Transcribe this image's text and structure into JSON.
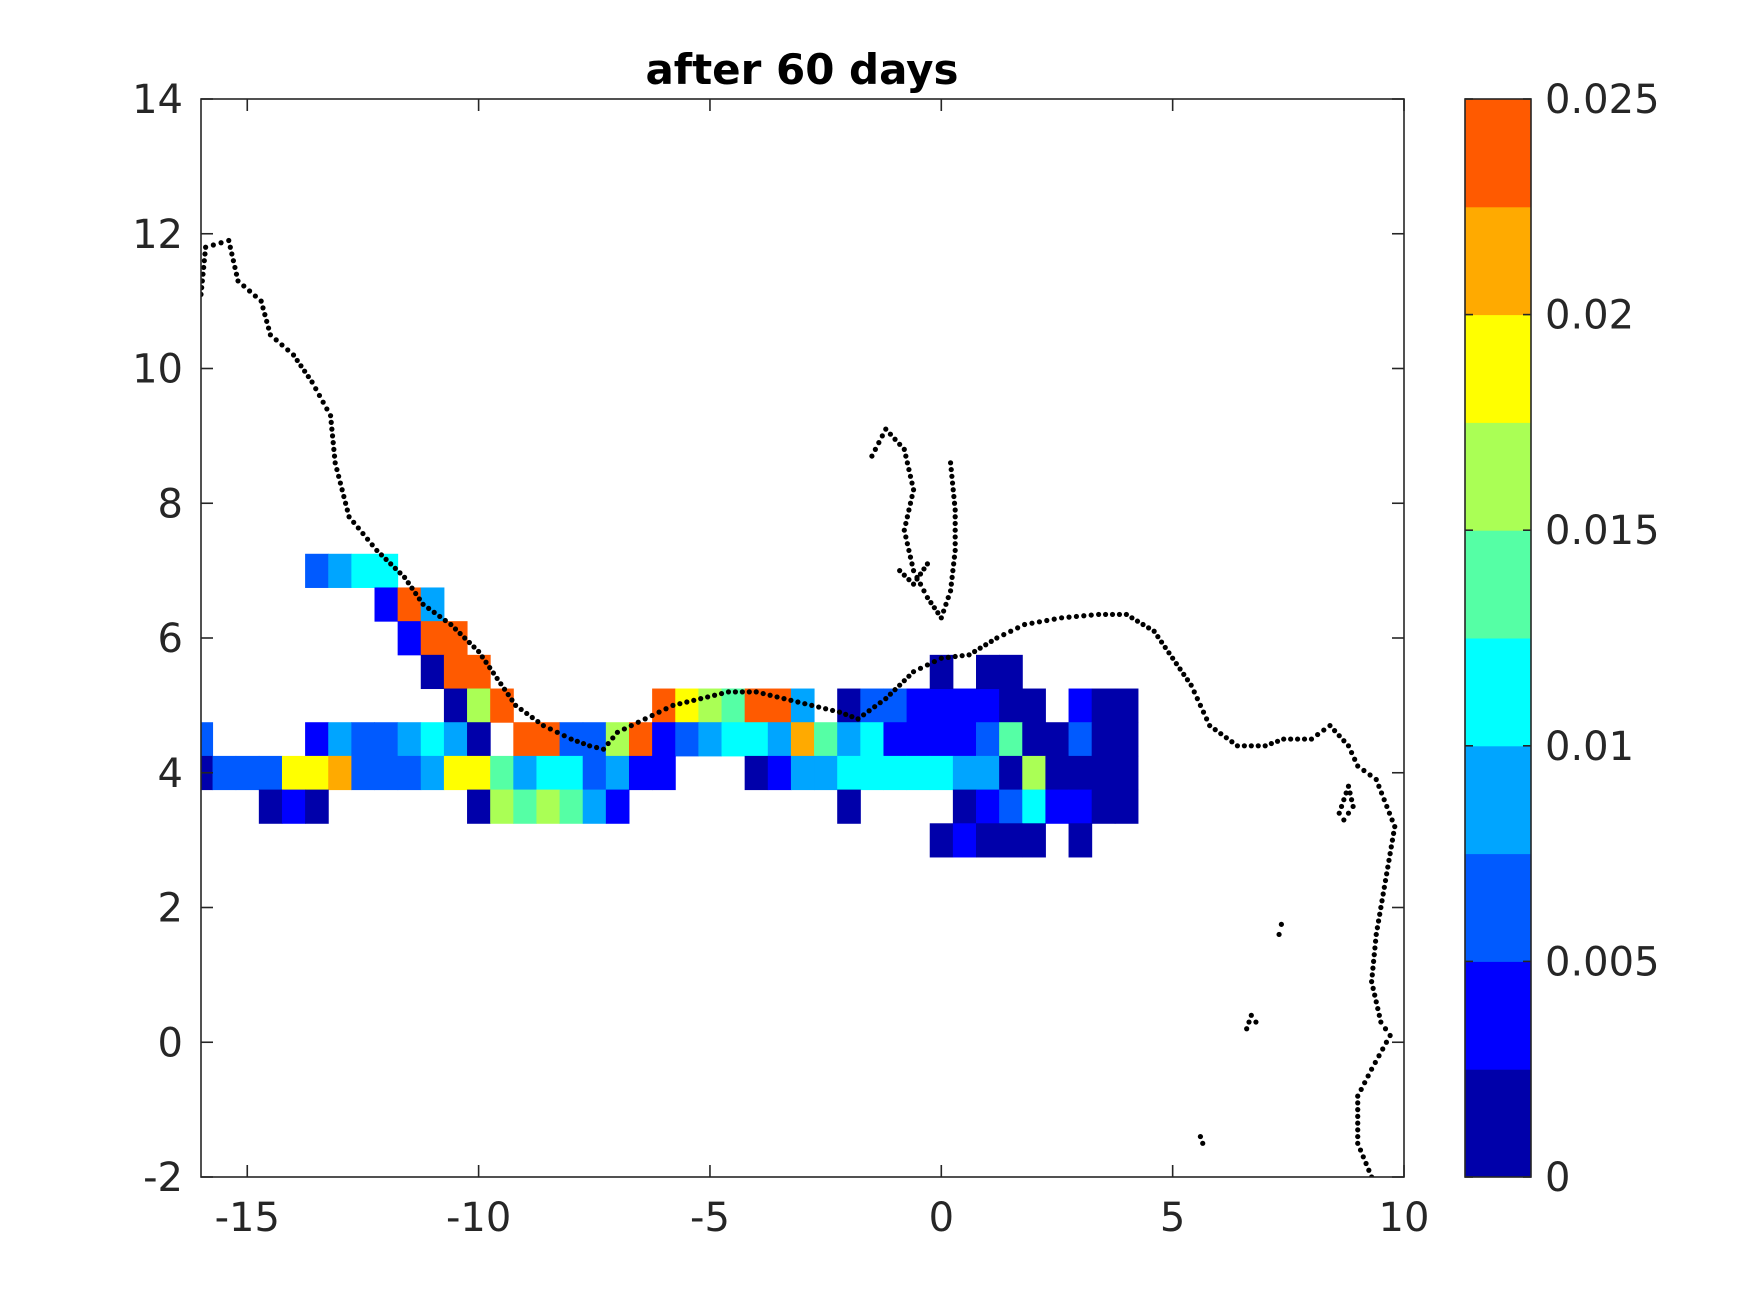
{
  "chart_data": {
    "type": "heatmap",
    "title": "after 60 days",
    "xlabel": "",
    "ylabel": "",
    "xlim": [
      -16,
      10
    ],
    "ylim": [
      -2,
      14
    ],
    "x_ticks": [
      -15,
      -10,
      -5,
      0,
      5,
      10
    ],
    "y_ticks": [
      -2,
      0,
      2,
      4,
      6,
      8,
      10,
      12,
      14
    ],
    "x_tick_labels": [
      "-15",
      "-10",
      "-5",
      "0",
      "5",
      "10"
    ],
    "y_tick_labels": [
      "-2",
      "0",
      "2",
      "4",
      "6",
      "8",
      "10",
      "12",
      "14"
    ],
    "grid": false,
    "colorbar": {
      "range": [
        0,
        0.025
      ],
      "levels": 10,
      "colors": [
        "#0000aa",
        "#0000ff",
        "#005aff",
        "#00a5ff",
        "#00ffff",
        "#55ffa5",
        "#aaff55",
        "#ffff00",
        "#ffaa00",
        "#ff5a00"
      ],
      "tick_values": [
        0,
        0.005,
        0.01,
        0.015,
        0.02,
        0.025
      ],
      "tick_labels": [
        "0",
        "0.005",
        "0.01",
        "0.015",
        "0.02",
        "0.025"
      ]
    },
    "cell_size": {
      "dx": 0.5,
      "dy": 0.5
    },
    "cells": [
      {
        "x": -13.5,
        "y": 7.0,
        "v": 0.006
      },
      {
        "x": -13.0,
        "y": 7.0,
        "v": 0.008
      },
      {
        "x": -12.5,
        "y": 7.0,
        "v": 0.011
      },
      {
        "x": -12.0,
        "y": 7.0,
        "v": 0.011
      },
      {
        "x": -12.0,
        "y": 6.5,
        "v": 0.004
      },
      {
        "x": -11.5,
        "y": 6.5,
        "v": 0.024
      },
      {
        "x": -11.0,
        "y": 6.5,
        "v": 0.009
      },
      {
        "x": -11.5,
        "y": 6.0,
        "v": 0.004
      },
      {
        "x": -11.0,
        "y": 6.0,
        "v": 0.024
      },
      {
        "x": -10.5,
        "y": 6.0,
        "v": 0.024
      },
      {
        "x": -11.0,
        "y": 5.5,
        "v": 0.002
      },
      {
        "x": -10.5,
        "y": 5.5,
        "v": 0.024
      },
      {
        "x": -10.0,
        "y": 5.5,
        "v": 0.024
      },
      {
        "x": -10.5,
        "y": 5.0,
        "v": 0.002
      },
      {
        "x": -10.0,
        "y": 5.0,
        "v": 0.016
      },
      {
        "x": -9.5,
        "y": 5.0,
        "v": 0.024
      },
      {
        "x": -6.0,
        "y": 5.0,
        "v": 0.024
      },
      {
        "x": -5.5,
        "y": 5.0,
        "v": 0.018
      },
      {
        "x": -5.0,
        "y": 5.0,
        "v": 0.016
      },
      {
        "x": -4.5,
        "y": 5.0,
        "v": 0.014
      },
      {
        "x": -4.0,
        "y": 5.0,
        "v": 0.024
      },
      {
        "x": -3.5,
        "y": 5.0,
        "v": 0.024
      },
      {
        "x": -3.0,
        "y": 5.0,
        "v": 0.008
      },
      {
        "x": -2.0,
        "y": 5.0,
        "v": 0.002
      },
      {
        "x": -1.5,
        "y": 5.0,
        "v": 0.006
      },
      {
        "x": -1.0,
        "y": 5.0,
        "v": 0.006
      },
      {
        "x": -0.5,
        "y": 5.0,
        "v": 0.004
      },
      {
        "x": 0.0,
        "y": 5.0,
        "v": 0.004
      },
      {
        "x": 0.5,
        "y": 5.0,
        "v": 0.004
      },
      {
        "x": 1.0,
        "y": 5.0,
        "v": 0.004
      },
      {
        "x": 1.5,
        "y": 5.0,
        "v": 0.002
      },
      {
        "x": 2.0,
        "y": 5.0,
        "v": 0.002
      },
      {
        "x": 3.0,
        "y": 5.0,
        "v": 0.004
      },
      {
        "x": 3.5,
        "y": 5.0,
        "v": 0.002
      },
      {
        "x": 4.0,
        "y": 5.0,
        "v": 0.002
      },
      {
        "x": 0.0,
        "y": 5.5,
        "v": 0.002
      },
      {
        "x": 1.0,
        "y": 5.5,
        "v": 0.002
      },
      {
        "x": 1.5,
        "y": 5.5,
        "v": 0.002
      },
      {
        "x": -16.0,
        "y": 4.5,
        "v": 0.006
      },
      {
        "x": -13.5,
        "y": 4.5,
        "v": 0.004
      },
      {
        "x": -13.0,
        "y": 4.5,
        "v": 0.008
      },
      {
        "x": -12.5,
        "y": 4.5,
        "v": 0.006
      },
      {
        "x": -12.0,
        "y": 4.5,
        "v": 0.006
      },
      {
        "x": -11.5,
        "y": 4.5,
        "v": 0.008
      },
      {
        "x": -11.0,
        "y": 4.5,
        "v": 0.011
      },
      {
        "x": -10.5,
        "y": 4.5,
        "v": 0.008
      },
      {
        "x": -10.0,
        "y": 4.5,
        "v": 0.002
      },
      {
        "x": -9.0,
        "y": 4.5,
        "v": 0.024
      },
      {
        "x": -8.5,
        "y": 4.5,
        "v": 0.024
      },
      {
        "x": -8.0,
        "y": 4.5,
        "v": 0.006
      },
      {
        "x": -7.5,
        "y": 4.5,
        "v": 0.006
      },
      {
        "x": -7.0,
        "y": 4.5,
        "v": 0.016
      },
      {
        "x": -6.5,
        "y": 4.5,
        "v": 0.024
      },
      {
        "x": -6.0,
        "y": 4.5,
        "v": 0.004
      },
      {
        "x": -5.5,
        "y": 4.5,
        "v": 0.006
      },
      {
        "x": -5.0,
        "y": 4.5,
        "v": 0.008
      },
      {
        "x": -4.5,
        "y": 4.5,
        "v": 0.011
      },
      {
        "x": -4.0,
        "y": 4.5,
        "v": 0.011
      },
      {
        "x": -3.5,
        "y": 4.5,
        "v": 0.008
      },
      {
        "x": -3.0,
        "y": 4.5,
        "v": 0.021
      },
      {
        "x": -2.5,
        "y": 4.5,
        "v": 0.014
      },
      {
        "x": -2.0,
        "y": 4.5,
        "v": 0.008
      },
      {
        "x": -1.5,
        "y": 4.5,
        "v": 0.011
      },
      {
        "x": -1.0,
        "y": 4.5,
        "v": 0.004
      },
      {
        "x": -0.5,
        "y": 4.5,
        "v": 0.004
      },
      {
        "x": 0.0,
        "y": 4.5,
        "v": 0.004
      },
      {
        "x": 0.5,
        "y": 4.5,
        "v": 0.004
      },
      {
        "x": 1.0,
        "y": 4.5,
        "v": 0.006
      },
      {
        "x": 1.5,
        "y": 4.5,
        "v": 0.014
      },
      {
        "x": 2.0,
        "y": 4.5,
        "v": 0.002
      },
      {
        "x": 2.5,
        "y": 4.5,
        "v": 0.002
      },
      {
        "x": 3.0,
        "y": 4.5,
        "v": 0.006
      },
      {
        "x": 3.5,
        "y": 4.5,
        "v": 0.002
      },
      {
        "x": 4.0,
        "y": 4.5,
        "v": 0.002
      },
      {
        "x": -16.0,
        "y": 4.0,
        "v": 0.002
      },
      {
        "x": -15.5,
        "y": 4.0,
        "v": 0.006
      },
      {
        "x": -15.0,
        "y": 4.0,
        "v": 0.006
      },
      {
        "x": -14.5,
        "y": 4.0,
        "v": 0.006
      },
      {
        "x": -14.0,
        "y": 4.0,
        "v": 0.018
      },
      {
        "x": -13.5,
        "y": 4.0,
        "v": 0.018
      },
      {
        "x": -13.0,
        "y": 4.0,
        "v": 0.021
      },
      {
        "x": -12.5,
        "y": 4.0,
        "v": 0.006
      },
      {
        "x": -12.0,
        "y": 4.0,
        "v": 0.006
      },
      {
        "x": -11.5,
        "y": 4.0,
        "v": 0.006
      },
      {
        "x": -11.0,
        "y": 4.0,
        "v": 0.008
      },
      {
        "x": -10.5,
        "y": 4.0,
        "v": 0.018
      },
      {
        "x": -10.0,
        "y": 4.0,
        "v": 0.018
      },
      {
        "x": -9.5,
        "y": 4.0,
        "v": 0.014
      },
      {
        "x": -9.0,
        "y": 4.0,
        "v": 0.008
      },
      {
        "x": -8.5,
        "y": 4.0,
        "v": 0.011
      },
      {
        "x": -8.0,
        "y": 4.0,
        "v": 0.011
      },
      {
        "x": -7.5,
        "y": 4.0,
        "v": 0.006
      },
      {
        "x": -7.0,
        "y": 4.0,
        "v": 0.008
      },
      {
        "x": -6.5,
        "y": 4.0,
        "v": 0.004
      },
      {
        "x": -6.0,
        "y": 4.0,
        "v": 0.004
      },
      {
        "x": -4.0,
        "y": 4.0,
        "v": 0.002
      },
      {
        "x": -3.5,
        "y": 4.0,
        "v": 0.004
      },
      {
        "x": -3.0,
        "y": 4.0,
        "v": 0.008
      },
      {
        "x": -2.5,
        "y": 4.0,
        "v": 0.008
      },
      {
        "x": -2.0,
        "y": 4.0,
        "v": 0.011
      },
      {
        "x": -1.5,
        "y": 4.0,
        "v": 0.011
      },
      {
        "x": -1.0,
        "y": 4.0,
        "v": 0.011
      },
      {
        "x": -0.5,
        "y": 4.0,
        "v": 0.011
      },
      {
        "x": 0.0,
        "y": 4.0,
        "v": 0.011
      },
      {
        "x": 0.5,
        "y": 4.0,
        "v": 0.008
      },
      {
        "x": 1.0,
        "y": 4.0,
        "v": 0.008
      },
      {
        "x": 1.5,
        "y": 4.0,
        "v": 0.002
      },
      {
        "x": 2.0,
        "y": 4.0,
        "v": 0.016
      },
      {
        "x": 2.5,
        "y": 4.0,
        "v": 0.002
      },
      {
        "x": 3.0,
        "y": 4.0,
        "v": 0.002
      },
      {
        "x": 3.5,
        "y": 4.0,
        "v": 0.002
      },
      {
        "x": 4.0,
        "y": 4.0,
        "v": 0.002
      },
      {
        "x": -14.5,
        "y": 3.5,
        "v": 0.002
      },
      {
        "x": -14.0,
        "y": 3.5,
        "v": 0.004
      },
      {
        "x": -13.5,
        "y": 3.5,
        "v": 0.002
      },
      {
        "x": -10.0,
        "y": 3.5,
        "v": 0.002
      },
      {
        "x": -9.5,
        "y": 3.5,
        "v": 0.016
      },
      {
        "x": -9.0,
        "y": 3.5,
        "v": 0.014
      },
      {
        "x": -8.5,
        "y": 3.5,
        "v": 0.016
      },
      {
        "x": -8.0,
        "y": 3.5,
        "v": 0.014
      },
      {
        "x": -7.5,
        "y": 3.5,
        "v": 0.008
      },
      {
        "x": -7.0,
        "y": 3.5,
        "v": 0.004
      },
      {
        "x": -2.0,
        "y": 3.5,
        "v": 0.002
      },
      {
        "x": 0.5,
        "y": 3.5,
        "v": 0.002
      },
      {
        "x": 1.0,
        "y": 3.5,
        "v": 0.004
      },
      {
        "x": 1.5,
        "y": 3.5,
        "v": 0.006
      },
      {
        "x": 2.0,
        "y": 3.5,
        "v": 0.011
      },
      {
        "x": 2.5,
        "y": 3.5,
        "v": 0.004
      },
      {
        "x": 3.0,
        "y": 3.5,
        "v": 0.004
      },
      {
        "x": 3.5,
        "y": 3.5,
        "v": 0.002
      },
      {
        "x": 4.0,
        "y": 3.5,
        "v": 0.002
      },
      {
        "x": 0.0,
        "y": 3.0,
        "v": 0.002
      },
      {
        "x": 0.5,
        "y": 3.0,
        "v": 0.004
      },
      {
        "x": 1.0,
        "y": 3.0,
        "v": 0.002
      },
      {
        "x": 1.5,
        "y": 3.0,
        "v": 0.002
      },
      {
        "x": 2.0,
        "y": 3.0,
        "v": 0.002
      },
      {
        "x": 3.0,
        "y": 3.0,
        "v": 0.002
      }
    ],
    "coastlines": [
      [
        [
          -16,
          11.1
        ],
        [
          -15.9,
          11.8
        ],
        [
          -15.4,
          11.9
        ],
        [
          -15.2,
          11.3
        ],
        [
          -14.7,
          11.0
        ],
        [
          -14.5,
          10.5
        ],
        [
          -14.0,
          10.2
        ],
        [
          -13.6,
          9.8
        ],
        [
          -13.2,
          9.3
        ],
        [
          -13.1,
          8.6
        ],
        [
          -12.8,
          7.8
        ],
        [
          -12.2,
          7.3
        ],
        [
          -11.6,
          6.9
        ],
        [
          -11.2,
          6.5
        ],
        [
          -10.6,
          6.2
        ],
        [
          -10.0,
          5.8
        ],
        [
          -9.6,
          5.4
        ],
        [
          -9.2,
          5.0
        ],
        [
          -8.6,
          4.7
        ],
        [
          -8.0,
          4.5
        ],
        [
          -7.6,
          4.4
        ],
        [
          -7.3,
          4.35
        ],
        [
          -7.0,
          4.6
        ],
        [
          -6.4,
          4.8
        ],
        [
          -5.8,
          5.0
        ],
        [
          -5.2,
          5.1
        ],
        [
          -4.6,
          5.2
        ],
        [
          -4.0,
          5.2
        ],
        [
          -3.4,
          5.1
        ],
        [
          -2.8,
          5.0
        ],
        [
          -2.2,
          4.9
        ],
        [
          -1.8,
          4.8
        ],
        [
          -1.2,
          5.1
        ],
        [
          -0.6,
          5.5
        ],
        [
          0.0,
          5.7
        ],
        [
          0.6,
          5.75
        ],
        [
          1.2,
          6.0
        ],
        [
          1.8,
          6.2
        ],
        [
          2.6,
          6.3
        ],
        [
          3.4,
          6.35
        ],
        [
          4.0,
          6.35
        ],
        [
          4.6,
          6.1
        ],
        [
          5.0,
          5.7
        ],
        [
          5.4,
          5.3
        ],
        [
          5.8,
          4.7
        ],
        [
          6.4,
          4.4
        ],
        [
          7.0,
          4.4
        ],
        [
          7.4,
          4.5
        ],
        [
          8.0,
          4.5
        ],
        [
          8.4,
          4.7
        ],
        [
          8.8,
          4.4
        ],
        [
          9.0,
          4.1
        ],
        [
          9.4,
          3.9
        ],
        [
          9.8,
          3.2
        ],
        [
          9.6,
          2.4
        ],
        [
          9.4,
          1.6
        ],
        [
          9.3,
          0.9
        ],
        [
          9.5,
          0.3
        ],
        [
          9.7,
          0.1
        ],
        [
          9.3,
          -0.4
        ],
        [
          9.0,
          -0.8
        ],
        [
          9.0,
          -1.5
        ],
        [
          9.3,
          -2.0
        ]
      ],
      [
        [
          -1.5,
          8.7
        ],
        [
          -1.2,
          9.1
        ],
        [
          -0.8,
          8.8
        ],
        [
          -0.6,
          8.2
        ],
        [
          -0.8,
          7.6
        ],
        [
          -0.6,
          7.0
        ],
        [
          -0.3,
          6.6
        ],
        [
          0.0,
          6.3
        ],
        [
          0.2,
          6.7
        ],
        [
          0.3,
          7.3
        ],
        [
          0.3,
          7.9
        ],
        [
          0.2,
          8.6
        ]
      ],
      [
        [
          -0.9,
          7.0
        ],
        [
          -0.6,
          6.8
        ],
        [
          -0.3,
          7.1
        ]
      ],
      [
        [
          8.6,
          3.4
        ],
        [
          8.8,
          3.8
        ],
        [
          8.9,
          3.5
        ],
        [
          8.7,
          3.3
        ]
      ],
      [
        [
          7.3,
          1.6
        ],
        [
          7.35,
          1.75
        ]
      ],
      [
        [
          6.6,
          0.2
        ],
        [
          6.7,
          0.4
        ],
        [
          6.8,
          0.3
        ]
      ],
      [
        [
          5.6,
          -1.4
        ],
        [
          5.65,
          -1.5
        ]
      ]
    ]
  }
}
